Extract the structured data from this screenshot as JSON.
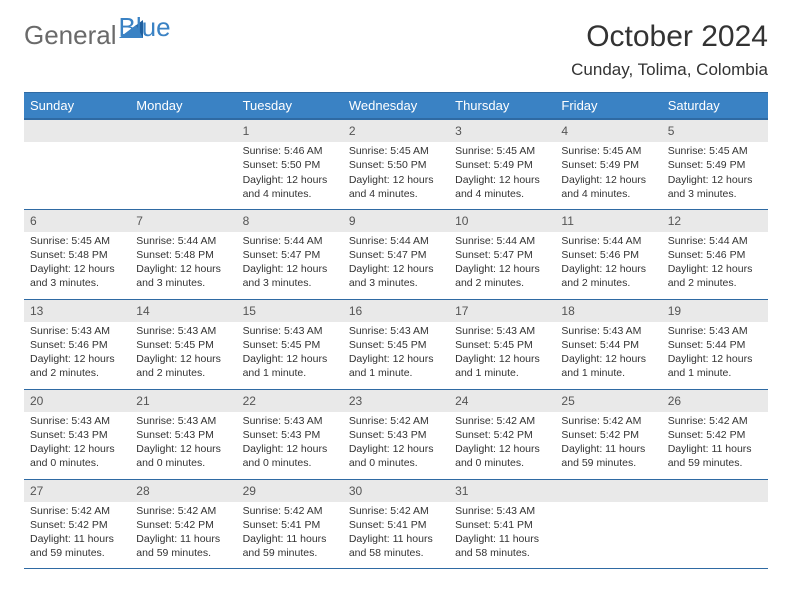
{
  "brand": {
    "part1": "General",
    "part2": "Blue"
  },
  "title": "October 2024",
  "location": "Cunday, Tolima, Colombia",
  "colors": {
    "header_bg": "#3a82c4",
    "header_border": "#2f6aa3",
    "daynum_bg": "#e9e9e9",
    "text": "#333333",
    "brand_gray": "#6a6a6a",
    "brand_blue": "#3a82c4",
    "background": "#ffffff"
  },
  "day_headers": [
    "Sunday",
    "Monday",
    "Tuesday",
    "Wednesday",
    "Thursday",
    "Friday",
    "Saturday"
  ],
  "weeks": [
    [
      null,
      null,
      {
        "n": "1",
        "sr": "5:46 AM",
        "ss": "5:50 PM",
        "dl": "12 hours and 4 minutes."
      },
      {
        "n": "2",
        "sr": "5:45 AM",
        "ss": "5:50 PM",
        "dl": "12 hours and 4 minutes."
      },
      {
        "n": "3",
        "sr": "5:45 AM",
        "ss": "5:49 PM",
        "dl": "12 hours and 4 minutes."
      },
      {
        "n": "4",
        "sr": "5:45 AM",
        "ss": "5:49 PM",
        "dl": "12 hours and 4 minutes."
      },
      {
        "n": "5",
        "sr": "5:45 AM",
        "ss": "5:49 PM",
        "dl": "12 hours and 3 minutes."
      }
    ],
    [
      {
        "n": "6",
        "sr": "5:45 AM",
        "ss": "5:48 PM",
        "dl": "12 hours and 3 minutes."
      },
      {
        "n": "7",
        "sr": "5:44 AM",
        "ss": "5:48 PM",
        "dl": "12 hours and 3 minutes."
      },
      {
        "n": "8",
        "sr": "5:44 AM",
        "ss": "5:47 PM",
        "dl": "12 hours and 3 minutes."
      },
      {
        "n": "9",
        "sr": "5:44 AM",
        "ss": "5:47 PM",
        "dl": "12 hours and 3 minutes."
      },
      {
        "n": "10",
        "sr": "5:44 AM",
        "ss": "5:47 PM",
        "dl": "12 hours and 2 minutes."
      },
      {
        "n": "11",
        "sr": "5:44 AM",
        "ss": "5:46 PM",
        "dl": "12 hours and 2 minutes."
      },
      {
        "n": "12",
        "sr": "5:44 AM",
        "ss": "5:46 PM",
        "dl": "12 hours and 2 minutes."
      }
    ],
    [
      {
        "n": "13",
        "sr": "5:43 AM",
        "ss": "5:46 PM",
        "dl": "12 hours and 2 minutes."
      },
      {
        "n": "14",
        "sr": "5:43 AM",
        "ss": "5:45 PM",
        "dl": "12 hours and 2 minutes."
      },
      {
        "n": "15",
        "sr": "5:43 AM",
        "ss": "5:45 PM",
        "dl": "12 hours and 1 minute."
      },
      {
        "n": "16",
        "sr": "5:43 AM",
        "ss": "5:45 PM",
        "dl": "12 hours and 1 minute."
      },
      {
        "n": "17",
        "sr": "5:43 AM",
        "ss": "5:45 PM",
        "dl": "12 hours and 1 minute."
      },
      {
        "n": "18",
        "sr": "5:43 AM",
        "ss": "5:44 PM",
        "dl": "12 hours and 1 minute."
      },
      {
        "n": "19",
        "sr": "5:43 AM",
        "ss": "5:44 PM",
        "dl": "12 hours and 1 minute."
      }
    ],
    [
      {
        "n": "20",
        "sr": "5:43 AM",
        "ss": "5:43 PM",
        "dl": "12 hours and 0 minutes."
      },
      {
        "n": "21",
        "sr": "5:43 AM",
        "ss": "5:43 PM",
        "dl": "12 hours and 0 minutes."
      },
      {
        "n": "22",
        "sr": "5:43 AM",
        "ss": "5:43 PM",
        "dl": "12 hours and 0 minutes."
      },
      {
        "n": "23",
        "sr": "5:42 AM",
        "ss": "5:43 PM",
        "dl": "12 hours and 0 minutes."
      },
      {
        "n": "24",
        "sr": "5:42 AM",
        "ss": "5:42 PM",
        "dl": "12 hours and 0 minutes."
      },
      {
        "n": "25",
        "sr": "5:42 AM",
        "ss": "5:42 PM",
        "dl": "11 hours and 59 minutes."
      },
      {
        "n": "26",
        "sr": "5:42 AM",
        "ss": "5:42 PM",
        "dl": "11 hours and 59 minutes."
      }
    ],
    [
      {
        "n": "27",
        "sr": "5:42 AM",
        "ss": "5:42 PM",
        "dl": "11 hours and 59 minutes."
      },
      {
        "n": "28",
        "sr": "5:42 AM",
        "ss": "5:42 PM",
        "dl": "11 hours and 59 minutes."
      },
      {
        "n": "29",
        "sr": "5:42 AM",
        "ss": "5:41 PM",
        "dl": "11 hours and 59 minutes."
      },
      {
        "n": "30",
        "sr": "5:42 AM",
        "ss": "5:41 PM",
        "dl": "11 hours and 58 minutes."
      },
      {
        "n": "31",
        "sr": "5:43 AM",
        "ss": "5:41 PM",
        "dl": "11 hours and 58 minutes."
      },
      null,
      null
    ]
  ],
  "labels": {
    "sunrise": "Sunrise:",
    "sunset": "Sunset:",
    "daylight": "Daylight:"
  }
}
